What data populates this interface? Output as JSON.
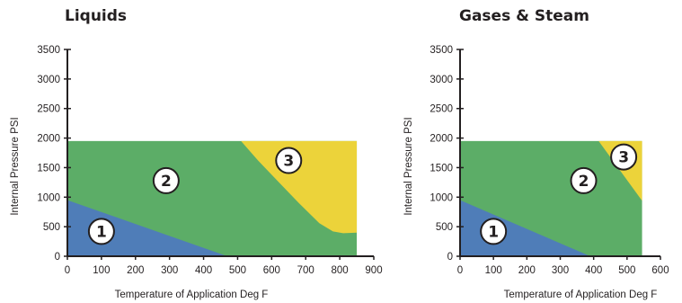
{
  "colors": {
    "zone1": "#4f7db8",
    "zone2": "#5cad67",
    "zone3": "#ecd33a",
    "axis": "#231f20",
    "marker_fill": "#ffffff"
  },
  "chart_data": [
    {
      "type": "area",
      "title": "Liquids",
      "xlabel": "Temperature of Application Deg F",
      "ylabel": "Internal Pressure PSI",
      "xlim": [
        0,
        900
      ],
      "ylim": [
        0,
        3500
      ],
      "x_ticks": [
        "0",
        "100",
        "200",
        "300",
        "400",
        "500",
        "600",
        "700",
        "800",
        "900"
      ],
      "y_ticks": [
        "0",
        "500",
        "1000",
        "1500",
        "2000",
        "2500",
        "3000",
        "3500"
      ],
      "grid": false,
      "legend": "none",
      "plot_extent": {
        "x_max": 850,
        "y_max": 1950
      },
      "series": [
        {
          "label": "1",
          "boundary": [
            [
              0,
              950
            ],
            [
              470,
              0
            ]
          ],
          "label_at": [
            100,
            420
          ]
        },
        {
          "label": "2",
          "label_at": [
            290,
            1280
          ]
        },
        {
          "label": "3",
          "boundary": [
            [
              510,
              1950
            ],
            [
              560,
              1620
            ],
            [
              620,
              1260
            ],
            [
              680,
              900
            ],
            [
              740,
              560
            ],
            [
              780,
              420
            ],
            [
              810,
              390
            ],
            [
              850,
              400
            ]
          ],
          "label_at": [
            650,
            1620
          ]
        }
      ]
    },
    {
      "type": "area",
      "title": "Gases & Steam",
      "xlabel": "Temperature of Application Deg F",
      "ylabel": "Internal Pressure PSI",
      "xlim": [
        0,
        600
      ],
      "ylim": [
        0,
        3500
      ],
      "x_ticks": [
        "0",
        "100",
        "200",
        "300",
        "400",
        "500",
        "600"
      ],
      "y_ticks": [
        "0",
        "500",
        "1000",
        "1500",
        "2000",
        "2500",
        "3000",
        "3500"
      ],
      "grid": false,
      "legend": "none",
      "plot_extent": {
        "x_max": 545,
        "y_max": 1950
      },
      "series": [
        {
          "label": "1",
          "boundary": [
            [
              0,
              950
            ],
            [
              390,
              0
            ]
          ],
          "label_at": [
            100,
            420
          ]
        },
        {
          "label": "2",
          "label_at": [
            370,
            1280
          ]
        },
        {
          "label": "3",
          "boundary": [
            [
              415,
              1950
            ],
            [
              545,
              940
            ]
          ],
          "label_at": [
            490,
            1680
          ]
        }
      ]
    }
  ]
}
